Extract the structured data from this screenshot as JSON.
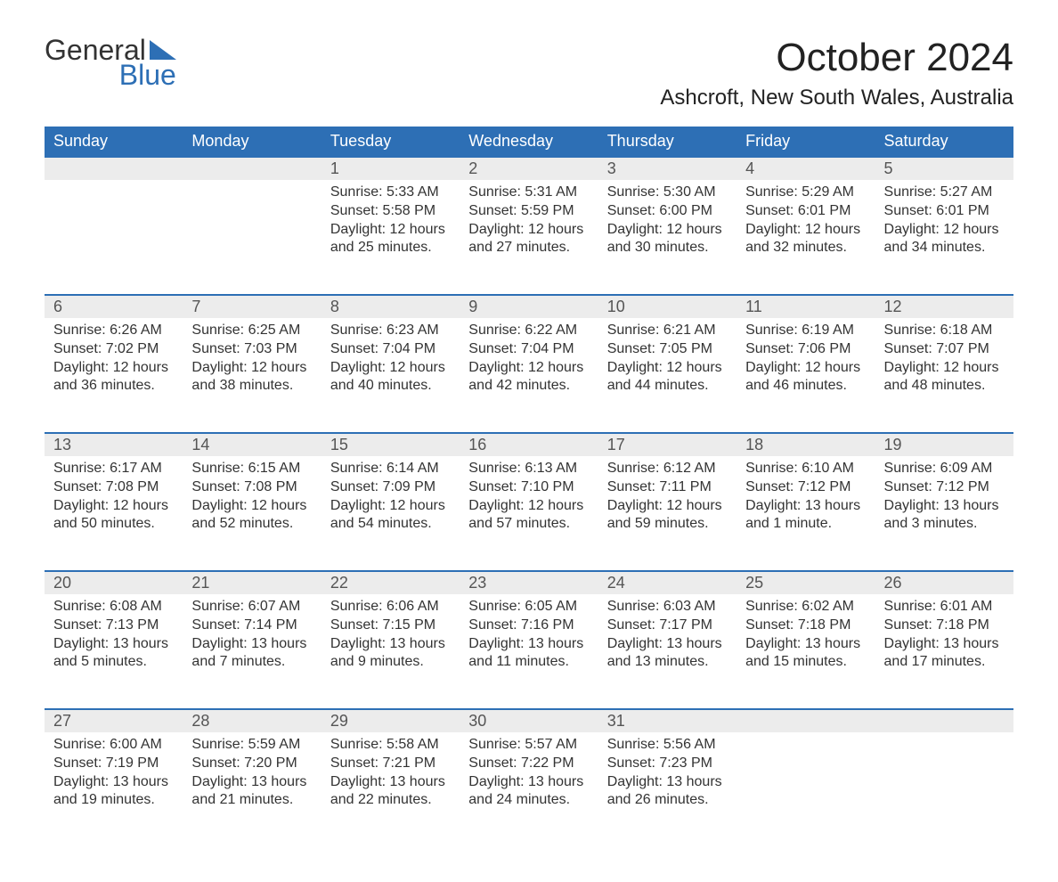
{
  "logo": {
    "word1": "General",
    "word2": "Blue",
    "accent_color": "#2d6fb5"
  },
  "title": "October 2024",
  "location": "Ashcroft, New South Wales, Australia",
  "colors": {
    "header_bg": "#2d6fb5",
    "header_fg": "#ffffff",
    "daynum_bg": "#ececec",
    "daynum_border": "#2d6fb5",
    "text": "#333333",
    "background": "#ffffff"
  },
  "fonts": {
    "family": "Arial",
    "title_size_pt": 33,
    "location_size_pt": 18,
    "dayheader_size_pt": 14,
    "body_size_pt": 12
  },
  "weekdays": [
    "Sunday",
    "Monday",
    "Tuesday",
    "Wednesday",
    "Thursday",
    "Friday",
    "Saturday"
  ],
  "weeks": [
    [
      {
        "n": "",
        "sunrise": "",
        "sunset": "",
        "daylight": ""
      },
      {
        "n": "",
        "sunrise": "",
        "sunset": "",
        "daylight": ""
      },
      {
        "n": "1",
        "sunrise": "5:33 AM",
        "sunset": "5:58 PM",
        "daylight": "12 hours and 25 minutes."
      },
      {
        "n": "2",
        "sunrise": "5:31 AM",
        "sunset": "5:59 PM",
        "daylight": "12 hours and 27 minutes."
      },
      {
        "n": "3",
        "sunrise": "5:30 AM",
        "sunset": "6:00 PM",
        "daylight": "12 hours and 30 minutes."
      },
      {
        "n": "4",
        "sunrise": "5:29 AM",
        "sunset": "6:01 PM",
        "daylight": "12 hours and 32 minutes."
      },
      {
        "n": "5",
        "sunrise": "5:27 AM",
        "sunset": "6:01 PM",
        "daylight": "12 hours and 34 minutes."
      }
    ],
    [
      {
        "n": "6",
        "sunrise": "6:26 AM",
        "sunset": "7:02 PM",
        "daylight": "12 hours and 36 minutes."
      },
      {
        "n": "7",
        "sunrise": "6:25 AM",
        "sunset": "7:03 PM",
        "daylight": "12 hours and 38 minutes."
      },
      {
        "n": "8",
        "sunrise": "6:23 AM",
        "sunset": "7:04 PM",
        "daylight": "12 hours and 40 minutes."
      },
      {
        "n": "9",
        "sunrise": "6:22 AM",
        "sunset": "7:04 PM",
        "daylight": "12 hours and 42 minutes."
      },
      {
        "n": "10",
        "sunrise": "6:21 AM",
        "sunset": "7:05 PM",
        "daylight": "12 hours and 44 minutes."
      },
      {
        "n": "11",
        "sunrise": "6:19 AM",
        "sunset": "7:06 PM",
        "daylight": "12 hours and 46 minutes."
      },
      {
        "n": "12",
        "sunrise": "6:18 AM",
        "sunset": "7:07 PM",
        "daylight": "12 hours and 48 minutes."
      }
    ],
    [
      {
        "n": "13",
        "sunrise": "6:17 AM",
        "sunset": "7:08 PM",
        "daylight": "12 hours and 50 minutes."
      },
      {
        "n": "14",
        "sunrise": "6:15 AM",
        "sunset": "7:08 PM",
        "daylight": "12 hours and 52 minutes."
      },
      {
        "n": "15",
        "sunrise": "6:14 AM",
        "sunset": "7:09 PM",
        "daylight": "12 hours and 54 minutes."
      },
      {
        "n": "16",
        "sunrise": "6:13 AM",
        "sunset": "7:10 PM",
        "daylight": "12 hours and 57 minutes."
      },
      {
        "n": "17",
        "sunrise": "6:12 AM",
        "sunset": "7:11 PM",
        "daylight": "12 hours and 59 minutes."
      },
      {
        "n": "18",
        "sunrise": "6:10 AM",
        "sunset": "7:12 PM",
        "daylight": "13 hours and 1 minute."
      },
      {
        "n": "19",
        "sunrise": "6:09 AM",
        "sunset": "7:12 PM",
        "daylight": "13 hours and 3 minutes."
      }
    ],
    [
      {
        "n": "20",
        "sunrise": "6:08 AM",
        "sunset": "7:13 PM",
        "daylight": "13 hours and 5 minutes."
      },
      {
        "n": "21",
        "sunrise": "6:07 AM",
        "sunset": "7:14 PM",
        "daylight": "13 hours and 7 minutes."
      },
      {
        "n": "22",
        "sunrise": "6:06 AM",
        "sunset": "7:15 PM",
        "daylight": "13 hours and 9 minutes."
      },
      {
        "n": "23",
        "sunrise": "6:05 AM",
        "sunset": "7:16 PM",
        "daylight": "13 hours and 11 minutes."
      },
      {
        "n": "24",
        "sunrise": "6:03 AM",
        "sunset": "7:17 PM",
        "daylight": "13 hours and 13 minutes."
      },
      {
        "n": "25",
        "sunrise": "6:02 AM",
        "sunset": "7:18 PM",
        "daylight": "13 hours and 15 minutes."
      },
      {
        "n": "26",
        "sunrise": "6:01 AM",
        "sunset": "7:18 PM",
        "daylight": "13 hours and 17 minutes."
      }
    ],
    [
      {
        "n": "27",
        "sunrise": "6:00 AM",
        "sunset": "7:19 PM",
        "daylight": "13 hours and 19 minutes."
      },
      {
        "n": "28",
        "sunrise": "5:59 AM",
        "sunset": "7:20 PM",
        "daylight": "13 hours and 21 minutes."
      },
      {
        "n": "29",
        "sunrise": "5:58 AM",
        "sunset": "7:21 PM",
        "daylight": "13 hours and 22 minutes."
      },
      {
        "n": "30",
        "sunrise": "5:57 AM",
        "sunset": "7:22 PM",
        "daylight": "13 hours and 24 minutes."
      },
      {
        "n": "31",
        "sunrise": "5:56 AM",
        "sunset": "7:23 PM",
        "daylight": "13 hours and 26 minutes."
      },
      {
        "n": "",
        "sunrise": "",
        "sunset": "",
        "daylight": ""
      },
      {
        "n": "",
        "sunrise": "",
        "sunset": "",
        "daylight": ""
      }
    ]
  ],
  "labels": {
    "sunrise": "Sunrise: ",
    "sunset": "Sunset: ",
    "daylight": "Daylight: "
  }
}
